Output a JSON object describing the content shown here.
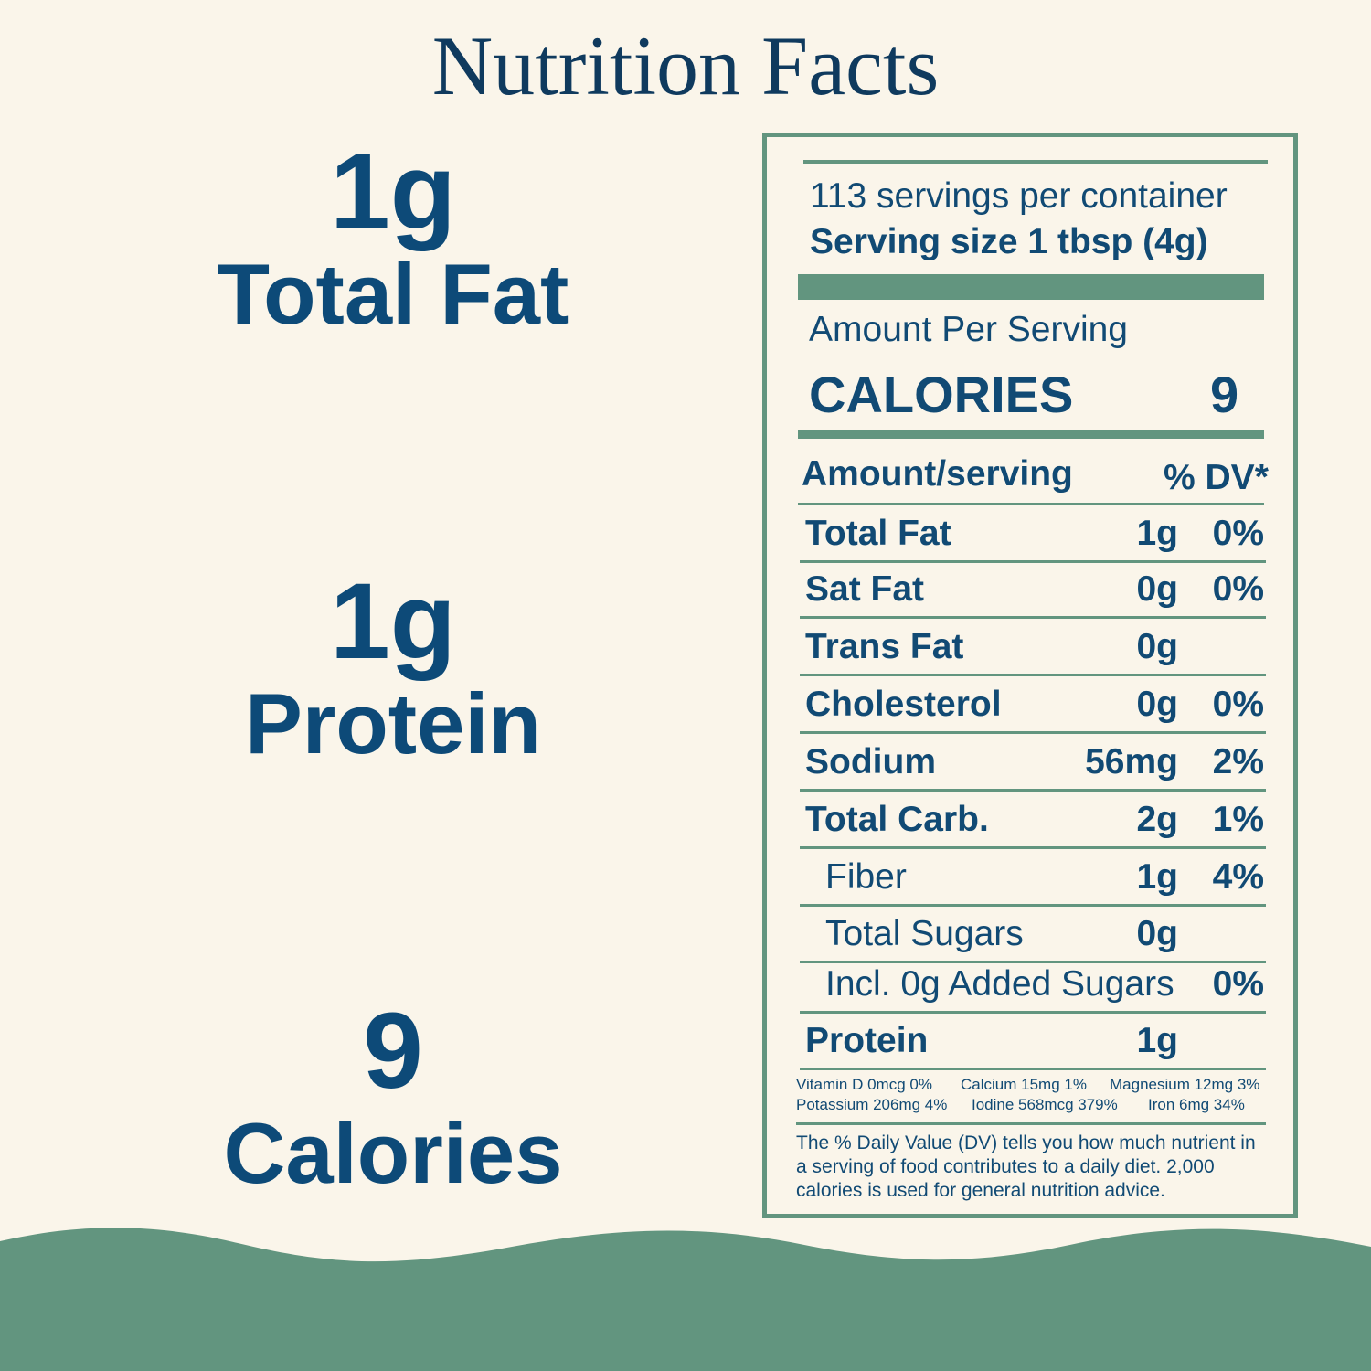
{
  "title": "Nutrition Facts",
  "highlights": [
    {
      "value": "1g",
      "label": "Total Fat"
    },
    {
      "value": "1g",
      "label": "Protein"
    },
    {
      "value": "9",
      "label": "Calories"
    }
  ],
  "label": {
    "servings_per_container": "113 servings per container",
    "serving_size": "Serving size 1 tbsp (4g)",
    "amount_per_serving": "Amount Per Serving",
    "calories_label": "CALORIES",
    "calories_value": "9",
    "header_left": "Amount/serving",
    "header_right": "% DV*",
    "rows": [
      {
        "name": "Total Fat",
        "amount": "1g",
        "dv": "0%"
      },
      {
        "name": "Sat Fat",
        "amount": "0g",
        "dv": "0%"
      },
      {
        "name": "Trans Fat",
        "amount": "0g",
        "dv": ""
      },
      {
        "name": "Cholesterol",
        "amount": "0g",
        "dv": "0%"
      },
      {
        "name": "Sodium",
        "amount": "56mg",
        "dv": "2%"
      },
      {
        "name": "Total Carb.",
        "amount": "2g",
        "dv": "1%"
      },
      {
        "name": "Fiber",
        "amount": "1g",
        "dv": "4%"
      },
      {
        "name": "Total Sugars",
        "amount": "0g",
        "dv": ""
      },
      {
        "name": "Incl. 0g Added Sugars",
        "amount": "",
        "dv": "0%"
      },
      {
        "name": "Protein",
        "amount": "1g",
        "dv": ""
      }
    ],
    "vitamins": [
      "Vitamin D 0mcg 0%",
      "Calcium 15mg 1%",
      "Magnesium 12mg 3%",
      "Potassium 206mg 4%",
      "Iodine 568mcg 379%",
      "Iron 6mg 34%"
    ],
    "footnote": "The % Daily Value (DV) tells you how much nutrient in a serving of food contributes to a daily diet. 2,000 calories is used for general nutrition advice."
  },
  "colors": {
    "background": "#faf5ea",
    "navy": "#0d4a78",
    "green": "#62957f"
  }
}
